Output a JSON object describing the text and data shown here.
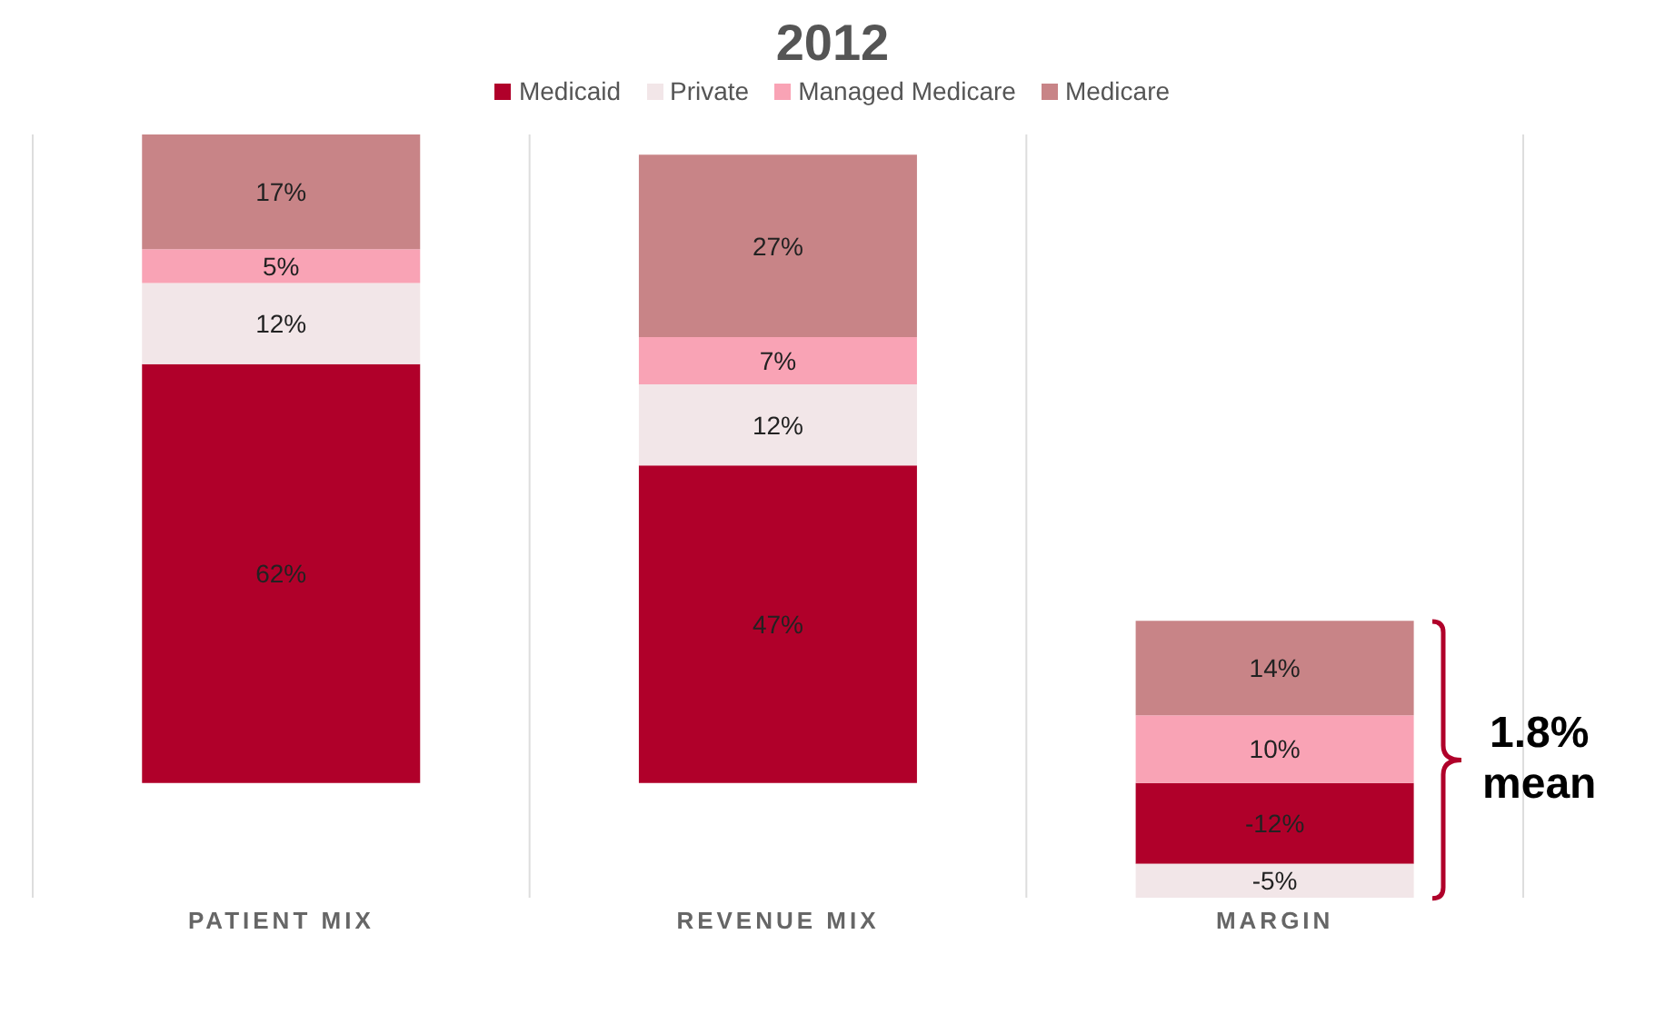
{
  "chart_data": {
    "type": "bar",
    "title": "2012",
    "stacked": true,
    "legend": "top",
    "grid": "x",
    "categories": [
      "PATIENT MIX",
      "REVENUE MIX",
      "MARGIN"
    ],
    "series": [
      {
        "name": "Medicaid",
        "color": "#b0002a",
        "values": [
          62,
          47,
          -12
        ],
        "value_labels": [
          "62%",
          "47%",
          "-12%"
        ]
      },
      {
        "name": "Private",
        "color": "#f2e6e8",
        "values": [
          12,
          12,
          -5
        ],
        "value_labels": [
          "12%",
          "12%",
          "-5%"
        ]
      },
      {
        "name": "Managed Medicare",
        "color": "#f9a3b5",
        "values": [
          5,
          7,
          10
        ],
        "value_labels": [
          "5%",
          "7%",
          "10%"
        ]
      },
      {
        "name": "Medicare",
        "color": "#c88487",
        "values": [
          17,
          27,
          14
        ],
        "value_labels": [
          "17%",
          "27%",
          "14%"
        ]
      }
    ],
    "annotations": [
      "1.8% mean"
    ]
  }
}
